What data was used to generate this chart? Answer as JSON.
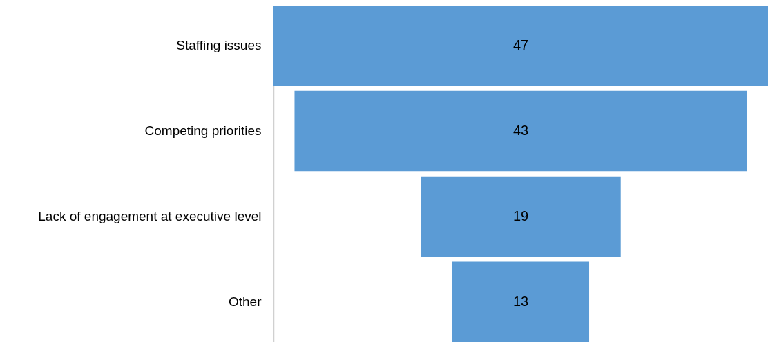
{
  "chart_data": {
    "type": "other",
    "categories": [
      "Staffing issues",
      "Competing priorities",
      "Lack of engagement at executive level",
      "Other"
    ],
    "values": [
      47,
      43,
      19,
      13
    ],
    "color": "#5b9bd5",
    "data_labels": true
  }
}
